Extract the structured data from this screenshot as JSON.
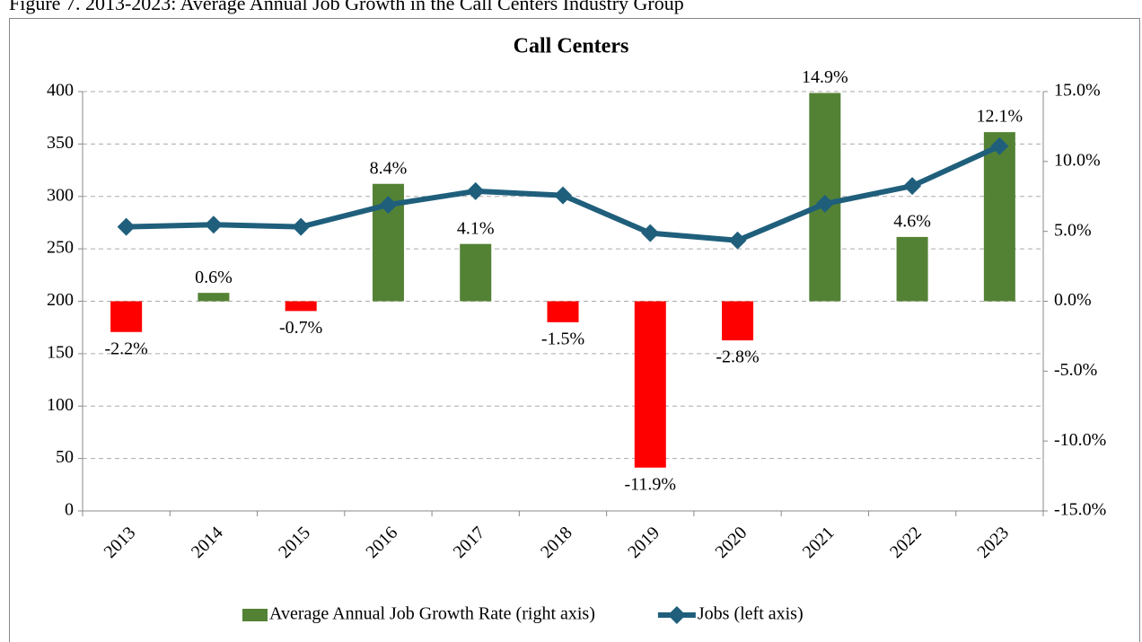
{
  "caption": "Figure 7. 2013-2023: Average Annual Job Growth in the Call Centers Industry Group",
  "chart_data": {
    "type": "bar-line",
    "title": "Call Centers",
    "categories": [
      "2013",
      "2014",
      "2015",
      "2016",
      "2017",
      "2018",
      "2019",
      "2020",
      "2021",
      "2022",
      "2023"
    ],
    "series": [
      {
        "name": "Average Annual Job Growth Rate (right axis)",
        "type": "bar",
        "axis": "y2",
        "color": "#548235",
        "negative_color": "#ff0000",
        "values": [
          -2.2,
          0.6,
          -0.7,
          8.4,
          4.1,
          -1.5,
          -11.9,
          -2.8,
          14.9,
          4.6,
          12.1
        ],
        "value_labels": [
          "-2.2%",
          "0.6%",
          "-0.7%",
          "8.4%",
          "4.1%",
          "-1.5%",
          "-11.9%",
          "-2.8%",
          "14.9%",
          "4.6%",
          "12.1%"
        ]
      },
      {
        "name": "Jobs (left axis)",
        "type": "line",
        "axis": "y",
        "color": "#1f5f7c",
        "values": [
          271,
          273,
          271,
          292,
          305,
          301,
          265,
          258,
          293,
          310,
          348
        ]
      }
    ],
    "ylim": [
      0,
      400
    ],
    "yticks": [
      0,
      50,
      100,
      150,
      200,
      250,
      300,
      350,
      400
    ],
    "y2lim": [
      -15,
      15
    ],
    "y2ticks": [
      {
        "value": -15,
        "label": "-15.0%"
      },
      {
        "value": -10,
        "label": "-10.0%"
      },
      {
        "value": -5,
        "label": "-5.0%"
      },
      {
        "value": 0,
        "label": "0.0%"
      },
      {
        "value": 5,
        "label": "5.0%"
      },
      {
        "value": 10,
        "label": "10.0%"
      },
      {
        "value": 15,
        "label": "15.0%"
      }
    ],
    "grid": true,
    "legend": "bottom"
  }
}
